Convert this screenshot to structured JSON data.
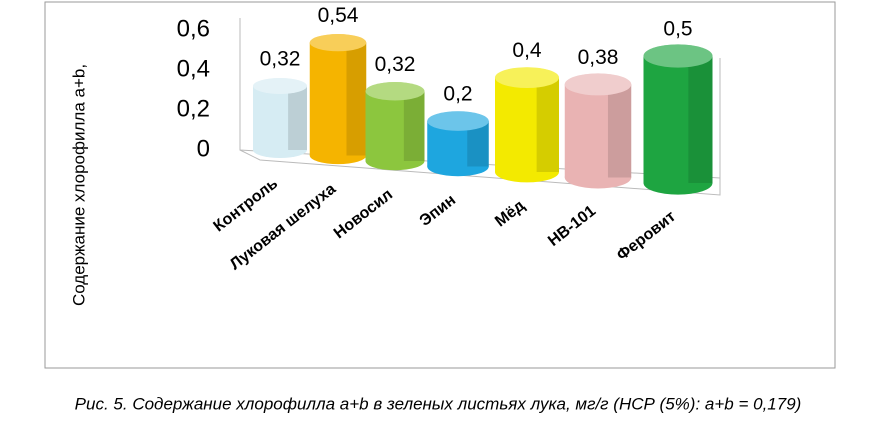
{
  "chart_data": {
    "type": "bar",
    "ylabel": "Содержание хлорофилла a+b,",
    "caption": "Рис. 5. Содержание хлорофилла a+b в зеленых листьях лука, мг/г (НСР (5%): a+b = 0,179)",
    "categories": [
      "Контроль",
      "Луковая шелуха",
      "Новосил",
      "Эпин",
      "Мёд",
      "НВ-101",
      "Феровит"
    ],
    "values": [
      0.32,
      0.54,
      0.32,
      0.2,
      0.4,
      0.38,
      0.5
    ],
    "value_labels": [
      "0,32",
      "0,54",
      "0,32",
      "0,2",
      "0,4",
      "0,38",
      "0,5"
    ],
    "colors": [
      "#d6ecf3",
      "#f5b400",
      "#8cc63e",
      "#1ea6df",
      "#f3ea00",
      "#e9b3b3",
      "#1ea541"
    ],
    "ylim": [
      0,
      0.6
    ],
    "yticks": [
      0,
      {
        "value": 0.2,
        "label": "0,2"
      },
      {
        "value": 0.4,
        "label": "0,4"
      },
      {
        "value": 0.6,
        "label": "0,6"
      }
    ]
  }
}
